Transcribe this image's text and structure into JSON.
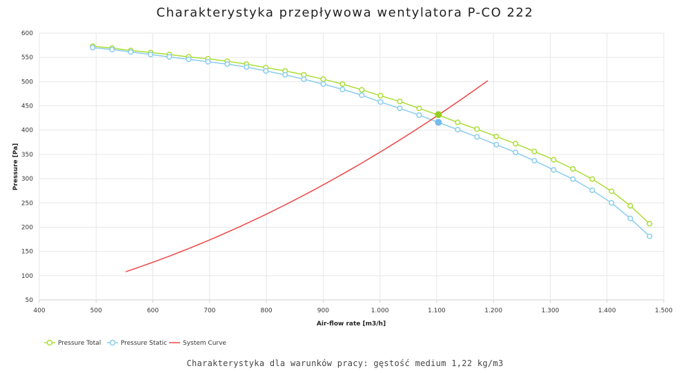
{
  "chart_data": {
    "type": "line",
    "title": "Charakterystyka przepływowa wentylatora P-CO 222",
    "caption": "Charakterystyka dla warunków pracy: gęstość medium 1,22 kg/m3",
    "xlabel": "Air-flow rate [m3/h]",
    "ylabel": "Pressure [Pa]",
    "xlim": [
      400,
      1500
    ],
    "ylim": [
      50,
      600
    ],
    "x_ticks": [
      400,
      500,
      600,
      700,
      800,
      900,
      1000,
      1100,
      1200,
      1300,
      1400,
      1500
    ],
    "x_tick_labels": [
      "400",
      "500",
      "600",
      "700",
      "800",
      "900",
      "1.000",
      "1.100",
      "1.200",
      "1.300",
      "1.400",
      "1.500"
    ],
    "y_ticks": [
      50,
      100,
      150,
      200,
      250,
      300,
      350,
      400,
      450,
      500,
      550,
      600
    ],
    "y_tick_labels": [
      "50",
      "100",
      "150",
      "200",
      "250",
      "300",
      "350",
      "400",
      "450",
      "500",
      "550",
      "600"
    ],
    "grid": true,
    "legend_position": "bottom-left",
    "series": [
      {
        "name": "Pressure Total",
        "color": "#aadd33",
        "marker": "open-circle",
        "x": [
          494,
          528,
          561,
          596,
          629,
          663,
          697,
          731,
          765,
          799,
          833,
          866,
          900,
          934,
          968,
          1001,
          1035,
          1069,
          1103,
          1137,
          1171,
          1205,
          1239,
          1272,
          1306,
          1340,
          1374,
          1408,
          1441,
          1475
        ],
        "y": [
          573,
          569,
          564,
          560,
          556,
          551,
          547,
          542,
          536,
          529,
          522,
          514,
          505,
          495,
          483,
          471,
          459,
          445,
          431,
          416,
          402,
          387,
          372,
          356,
          339,
          320,
          299,
          274,
          244,
          207
        ]
      },
      {
        "name": "Pressure Static",
        "color": "#88ccee",
        "marker": "open-circle",
        "x": [
          494,
          528,
          561,
          596,
          629,
          663,
          697,
          731,
          765,
          799,
          833,
          866,
          900,
          934,
          968,
          1001,
          1035,
          1069,
          1103,
          1137,
          1171,
          1205,
          1239,
          1272,
          1306,
          1340,
          1374,
          1408,
          1441,
          1475
        ],
        "y": [
          570,
          566,
          561,
          556,
          551,
          546,
          541,
          536,
          530,
          522,
          514,
          505,
          495,
          484,
          472,
          458,
          445,
          431,
          416,
          401,
          386,
          370,
          354,
          337,
          318,
          299,
          276,
          250,
          218,
          181
        ]
      },
      {
        "name": "System Curve",
        "color": "#ee4444",
        "marker": "none",
        "curve": "quadratic",
        "x_range": [
          552,
          1190
        ],
        "y_end": 502
      }
    ],
    "operating_points": [
      {
        "series": "Pressure Total",
        "x": 1103,
        "y": 432,
        "color": "#99cc22"
      },
      {
        "series": "Pressure Static",
        "x": 1103,
        "y": 416,
        "color": "#77bbee"
      }
    ]
  }
}
